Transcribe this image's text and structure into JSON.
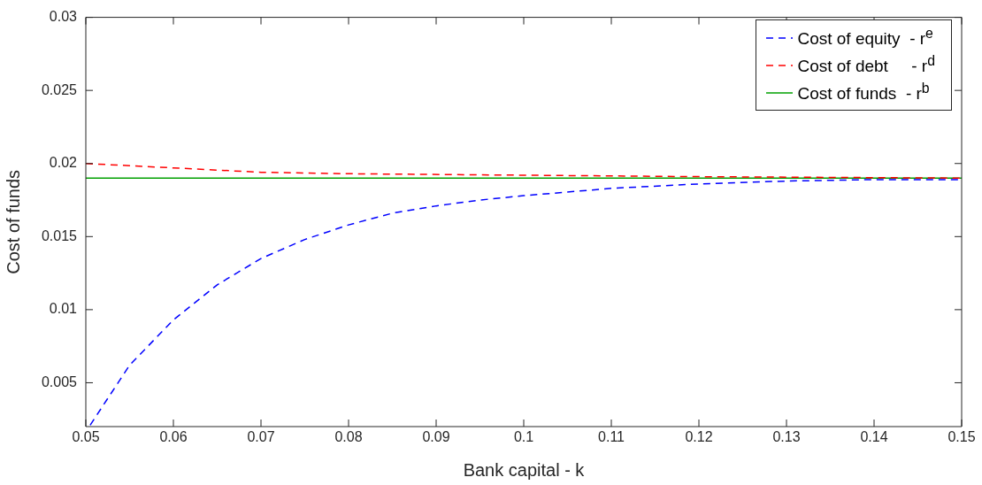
{
  "chart_data": {
    "type": "line",
    "xlabel": "Bank capital - k",
    "ylabel": "Cost of funds",
    "xlim": [
      0.05,
      0.15
    ],
    "xticks": [
      0.05,
      0.06,
      0.07,
      0.08,
      0.09,
      0.1,
      0.11,
      0.12,
      0.13,
      0.14,
      0.15
    ],
    "ylim": [
      0.002,
      0.03
    ],
    "yticks": [
      0.005,
      0.01,
      0.015,
      0.02,
      0.025,
      0.03
    ],
    "grid": false,
    "legend": "top right",
    "marker": "none",
    "series": [
      {
        "name": "Cost of equity  - r$^{e}$",
        "color": "#0000ff",
        "line_style": "dashed",
        "x": [
          0.0505,
          0.055,
          0.06,
          0.065,
          0.07,
          0.075,
          0.08,
          0.085,
          0.09,
          0.095,
          0.1,
          0.11,
          0.12,
          0.13,
          0.14,
          0.15
        ],
        "values": [
          0.0021,
          0.0062,
          0.0093,
          0.0117,
          0.0135,
          0.0148,
          0.0158,
          0.0166,
          0.0171,
          0.0175,
          0.0178,
          0.0183,
          0.0186,
          0.0188,
          0.0189,
          0.0189
        ]
      },
      {
        "name": "Cost of debt     - r$^{d}$",
        "color": "#ff0000",
        "line_style": "dashed",
        "x": [
          0.05,
          0.06,
          0.07,
          0.08,
          0.1,
          0.12,
          0.15
        ],
        "values": [
          0.02,
          0.0197,
          0.0194,
          0.0193,
          0.0192,
          0.0191,
          0.019
        ]
      },
      {
        "name": "Cost of funds  - r$^{b}$",
        "color": "#00a000",
        "line_style": "solid",
        "x": [
          0.05,
          0.15
        ],
        "values": [
          0.019,
          0.019
        ]
      }
    ]
  }
}
